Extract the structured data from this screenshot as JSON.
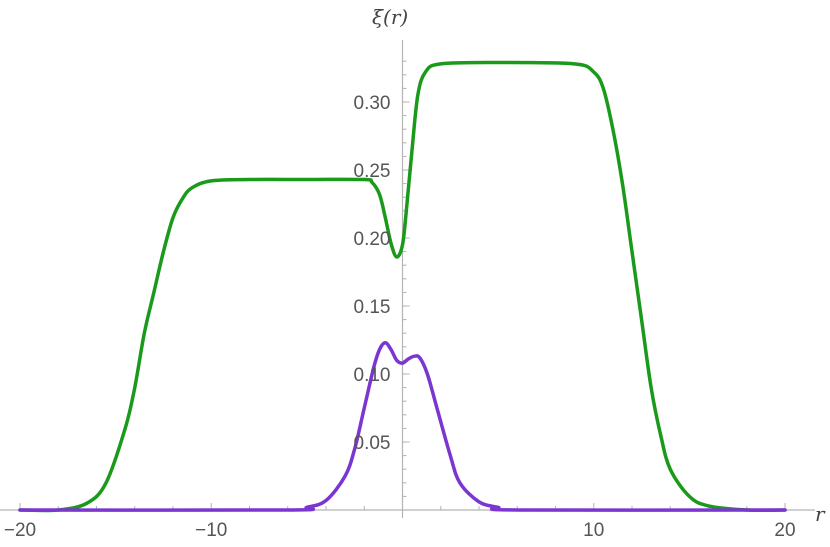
{
  "chart_data": {
    "type": "line",
    "title": "",
    "xlabel": "r",
    "ylabel": "ξ(r)",
    "xlim": [
      -20,
      20
    ],
    "ylim": [
      0,
      0.34
    ],
    "grid": false,
    "x_ticks": [
      {
        "value": -20,
        "label": "−20"
      },
      {
        "value": -10,
        "label": "−10"
      },
      {
        "value": 10,
        "label": "10"
      },
      {
        "value": 20,
        "label": "20"
      }
    ],
    "y_ticks": [
      {
        "value": 0.05,
        "label": "0.05"
      },
      {
        "value": 0.1,
        "label": "0.10"
      },
      {
        "value": 0.15,
        "label": "0.15"
      },
      {
        "value": 0.2,
        "label": "0.20"
      },
      {
        "value": 0.25,
        "label": "0.25"
      },
      {
        "value": 0.3,
        "label": "0.30"
      }
    ],
    "series": [
      {
        "color": "#1a9a1a",
        "points": [
          [
            -20,
            0.0
          ],
          [
            -18,
            0.0
          ],
          [
            -16.5,
            0.005
          ],
          [
            -15.5,
            0.02
          ],
          [
            -14.5,
            0.06
          ],
          [
            -14,
            0.09
          ],
          [
            -13.5,
            0.13
          ],
          [
            -13,
            0.16
          ],
          [
            -12.5,
            0.19
          ],
          [
            -12,
            0.215
          ],
          [
            -11.5,
            0.229
          ],
          [
            -11,
            0.237
          ],
          [
            -10,
            0.242
          ],
          [
            -8,
            0.243
          ],
          [
            -5,
            0.243
          ],
          [
            -2,
            0.243
          ],
          [
            -1.6,
            0.241
          ],
          [
            -1.2,
            0.232
          ],
          [
            -0.9,
            0.215
          ],
          [
            -0.6,
            0.196
          ],
          [
            -0.3,
            0.186
          ],
          [
            0,
            0.195
          ],
          [
            0.2,
            0.22
          ],
          [
            0.5,
            0.265
          ],
          [
            0.8,
            0.305
          ],
          [
            1.2,
            0.322
          ],
          [
            2,
            0.328
          ],
          [
            5,
            0.329
          ],
          [
            9,
            0.328
          ],
          [
            10,
            0.322
          ],
          [
            10.5,
            0.31
          ],
          [
            11,
            0.28
          ],
          [
            11.5,
            0.24
          ],
          [
            12,
            0.19
          ],
          [
            12.5,
            0.14
          ],
          [
            13,
            0.09
          ],
          [
            13.5,
            0.055
          ],
          [
            14,
            0.03
          ],
          [
            15,
            0.01
          ],
          [
            16,
            0.003
          ],
          [
            18,
            0.0
          ],
          [
            20,
            0.0
          ]
        ]
      },
      {
        "color": "#7b35d1",
        "points": [
          [
            -20,
            0.0
          ],
          [
            -6,
            0.0
          ],
          [
            -5,
            0.002
          ],
          [
            -4,
            0.007
          ],
          [
            -3,
            0.025
          ],
          [
            -2.5,
            0.045
          ],
          [
            -2,
            0.075
          ],
          [
            -1.5,
            0.105
          ],
          [
            -1.2,
            0.118
          ],
          [
            -0.9,
            0.123
          ],
          [
            -0.6,
            0.118
          ],
          [
            -0.3,
            0.11
          ],
          [
            0,
            0.108
          ],
          [
            0.3,
            0.111
          ],
          [
            0.6,
            0.113
          ],
          [
            0.9,
            0.112
          ],
          [
            1.3,
            0.1
          ],
          [
            1.8,
            0.075
          ],
          [
            2.5,
            0.04
          ],
          [
            3,
            0.02
          ],
          [
            4,
            0.006
          ],
          [
            5,
            0.002
          ],
          [
            6,
            0.0
          ],
          [
            20,
            0.0
          ]
        ]
      }
    ]
  }
}
